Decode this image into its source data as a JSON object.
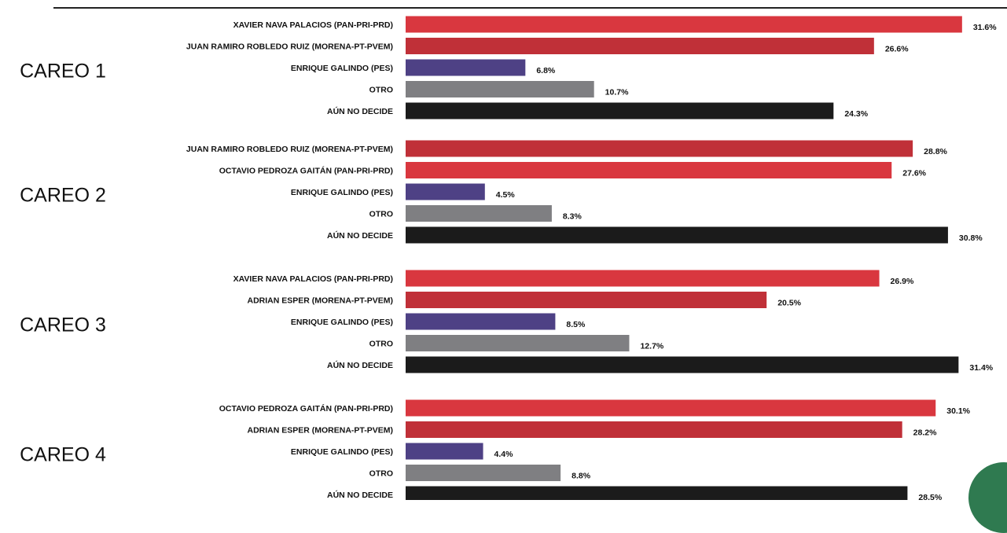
{
  "colors": {
    "pan_pri_prd": "#d9373f",
    "morena_pt_pvem": "#c03038",
    "pes": "#4e4185",
    "otro": "#7f7f82",
    "no_decide": "#1b1b1b",
    "badge": "#2f7a50"
  },
  "chart_data": [
    {
      "type": "bar",
      "title": "CAREO 1",
      "categories": [
        "XAVIER NAVA PALACIOS (PAN-PRI-PRD)",
        "JUAN RAMIRO ROBLEDO RUIZ (MORENA-PT-PVEM)",
        "ENRIQUE GALINDO (PES)",
        "OTRO",
        "AÚN NO DECIDE"
      ],
      "values": [
        31.6,
        26.6,
        6.8,
        10.7,
        24.3
      ],
      "labels": [
        "31.6%",
        "26.6%",
        "6.8%",
        "10.7%",
        "24.3%"
      ],
      "colors": [
        "#d9373f",
        "#c03038",
        "#4e4185",
        "#7f7f82",
        "#1b1b1b"
      ]
    },
    {
      "type": "bar",
      "title": "CAREO 2",
      "categories": [
        "JUAN RAMIRO ROBLEDO RUIZ (MORENA-PT-PVEM)",
        "OCTAVIO PEDROZA GAITÁN (PAN-PRI-PRD)",
        "ENRIQUE GALINDO (PES)",
        "OTRO",
        "AÚN NO DECIDE"
      ],
      "values": [
        28.8,
        27.6,
        4.5,
        8.3,
        30.8
      ],
      "labels": [
        "28.8%",
        "27.6%",
        "4.5%",
        "8.3%",
        "30.8%"
      ],
      "colors": [
        "#c03038",
        "#d9373f",
        "#4e4185",
        "#7f7f82",
        "#1b1b1b"
      ]
    },
    {
      "type": "bar",
      "title": "CAREO 3",
      "categories": [
        "XAVIER NAVA PALACIOS (PAN-PRI-PRD)",
        "ADRIAN ESPER (MORENA-PT-PVEM)",
        "ENRIQUE GALINDO (PES)",
        "OTRO",
        "AÚN NO DECIDE"
      ],
      "values": [
        26.9,
        20.5,
        8.5,
        12.7,
        31.4
      ],
      "labels": [
        "26.9%",
        "20.5%",
        "8.5%",
        "12.7%",
        "31.4%"
      ],
      "colors": [
        "#d9373f",
        "#c03038",
        "#4e4185",
        "#7f7f82",
        "#1b1b1b"
      ]
    },
    {
      "type": "bar",
      "title": "CAREO 4",
      "categories": [
        "OCTAVIO PEDROZA GAITÁN (PAN-PRI-PRD)",
        "ADRIAN ESPER (MORENA-PT-PVEM)",
        "ENRIQUE GALINDO (PES)",
        "OTRO",
        "AÚN NO DECIDE"
      ],
      "values": [
        30.1,
        28.2,
        4.4,
        8.8,
        28.5
      ],
      "labels": [
        "30.1%",
        "28.2%",
        "4.4%",
        "8.8%",
        "28.5%"
      ],
      "colors": [
        "#d9373f",
        "#c03038",
        "#4e4185",
        "#7f7f82",
        "#1b1b1b"
      ]
    }
  ]
}
